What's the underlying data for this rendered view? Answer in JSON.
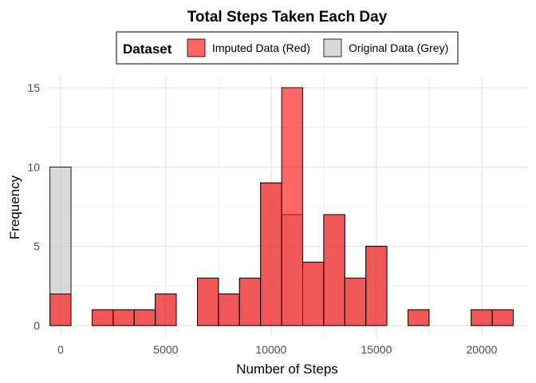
{
  "chart_data": {
    "type": "bar",
    "title": "Total Steps Taken Each Day",
    "xlabel": "Number of Steps",
    "ylabel": "Frequency",
    "xlim": [
      -600,
      22200
    ],
    "ylim": [
      -0.75,
      15.75
    ],
    "x_ticks": [
      0,
      5000,
      10000,
      15000,
      20000
    ],
    "y_ticks": [
      0,
      5,
      10,
      15
    ],
    "grid": true,
    "bin_width": 1000,
    "legend": {
      "title": "Dataset",
      "position": "top",
      "entries": [
        {
          "label": "Imputed Data (Red)",
          "color": "#ff0000",
          "opacity": 0.6
        },
        {
          "label": "Original Data (Grey)",
          "color": "#bfbfbf",
          "opacity": 0.6
        }
      ]
    },
    "bin_centers": [
      0,
      1000,
      2000,
      3000,
      4000,
      5000,
      6000,
      7000,
      8000,
      9000,
      10000,
      11000,
      12000,
      13000,
      14000,
      15000,
      16000,
      17000,
      18000,
      19000,
      20000,
      21000
    ],
    "series": [
      {
        "name": "Imputed Data (Red)",
        "color": "#ff0000",
        "opacity": 0.6,
        "values": [
          2,
          0,
          1,
          1,
          1,
          2,
          0,
          3,
          2,
          3,
          9,
          15,
          4,
          7,
          3,
          5,
          0,
          1,
          0,
          0,
          1,
          1
        ]
      },
      {
        "name": "Original Data (Grey)",
        "color": "#bfbfbf",
        "opacity": 0.6,
        "values": [
          10,
          0,
          1,
          1,
          1,
          2,
          0,
          3,
          2,
          3,
          9,
          7,
          4,
          7,
          3,
          5,
          0,
          1,
          0,
          0,
          1,
          1
        ]
      }
    ]
  }
}
